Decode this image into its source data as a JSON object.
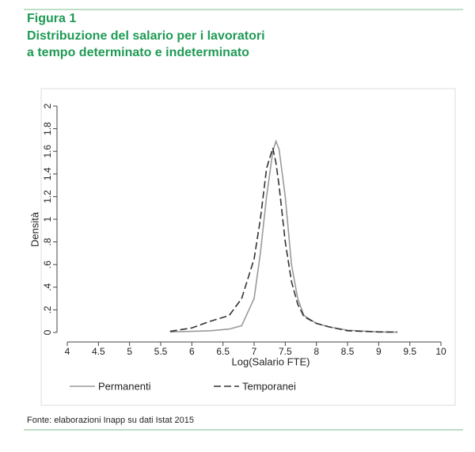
{
  "chart_data": {
    "type": "line",
    "title": "Figura 1",
    "subtitle": [
      "Distribuzione del salario per i lavoratori",
      "a tempo determinato e indeterminato"
    ],
    "source": "Fonte: elaborazioni Inapp su dati Istat 2015",
    "x_label": "Log(Salario FTE)",
    "y_label": "Densità",
    "x": [
      5.65,
      6,
      6.3,
      6.6,
      6.8,
      7,
      7.1,
      7.2,
      7.3,
      7.35,
      7.4,
      7.5,
      7.6,
      7.7,
      7.8,
      8,
      8.2,
      8.5,
      9,
      9.3
    ],
    "series": [
      {
        "name": "Permanenti",
        "color": "#9a9a9a",
        "dashed": false,
        "values": [
          0.005,
          0.01,
          0.015,
          0.03,
          0.06,
          0.3,
          0.7,
          1.2,
          1.6,
          1.69,
          1.62,
          1.2,
          0.6,
          0.3,
          0.15,
          0.08,
          0.05,
          0.02,
          0.005,
          0.003
        ]
      },
      {
        "name": "Temporanei",
        "color": "#333333",
        "dashed": true,
        "values": [
          0.01,
          0.04,
          0.1,
          0.15,
          0.3,
          0.65,
          1.0,
          1.45,
          1.63,
          1.5,
          1.3,
          0.8,
          0.45,
          0.25,
          0.14,
          0.08,
          0.05,
          0.015,
          0.005,
          0.003
        ]
      }
    ],
    "xlim": [
      4,
      10
    ],
    "xticks": [
      4,
      4.5,
      5,
      5.5,
      6,
      6.5,
      7,
      7.5,
      8,
      8.5,
      9,
      9.5,
      10
    ],
    "ylim": [
      0,
      2
    ],
    "yticks": [
      0,
      {
        "value": 0.2,
        "label": ".2"
      },
      {
        "value": 0.4,
        "label": ".4"
      },
      {
        "value": 0.6,
        "label": ".6"
      },
      {
        "value": 0.8,
        "label": ".8"
      },
      1,
      1.2,
      1.4,
      1.6,
      1.8,
      2
    ],
    "grid": false
  }
}
